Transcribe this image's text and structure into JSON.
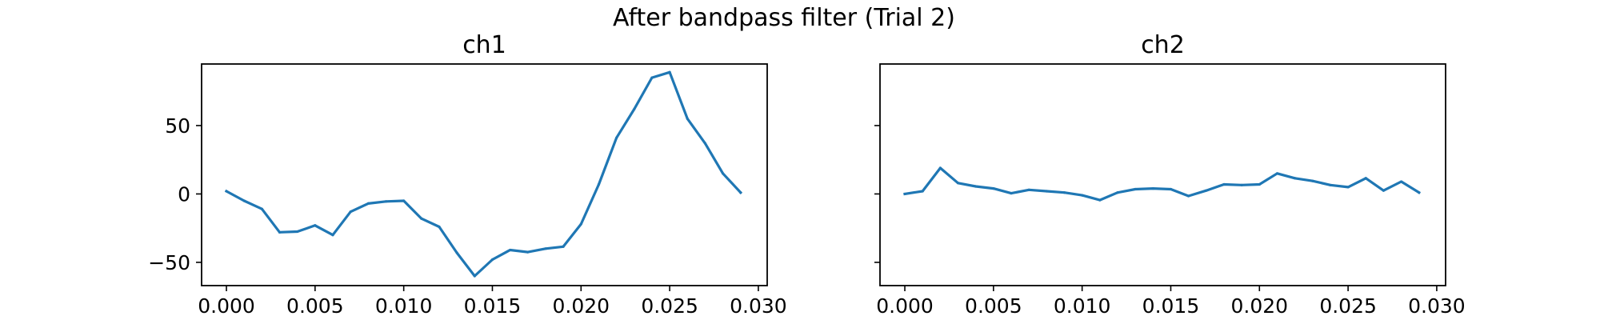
{
  "figure": {
    "suptitle": "After bandpass filter (Trial 2)"
  },
  "colors": {
    "series": "#1f77b4"
  },
  "chart_data": [
    {
      "type": "line",
      "title": "ch1",
      "xlabel": "",
      "ylabel": "",
      "xlim": [
        -0.0014,
        0.0305
      ],
      "ylim": [
        -67,
        95
      ],
      "xticks": [
        "0.000",
        "0.005",
        "0.010",
        "0.015",
        "0.020",
        "0.025",
        "0.030"
      ],
      "yticks": [
        "50",
        "0",
        "−50"
      ],
      "show_ytick_labels": true,
      "grid": false,
      "x": [
        0.0,
        0.001,
        0.002,
        0.003,
        0.004,
        0.005,
        0.006,
        0.007,
        0.008,
        0.009,
        0.01,
        0.011,
        0.012,
        0.013,
        0.014,
        0.015,
        0.016,
        0.017,
        0.018,
        0.019,
        0.02,
        0.021,
        0.022,
        0.023,
        0.024,
        0.025,
        0.026,
        0.027,
        0.028,
        0.029
      ],
      "values": [
        2,
        -5,
        -11,
        -28,
        -27.5,
        -23,
        -30,
        -13,
        -7,
        -5.5,
        -5,
        -18,
        -24,
        -43,
        -60,
        -48,
        -41,
        -42.5,
        -40,
        -38.5,
        -22,
        7,
        41,
        62,
        85,
        89,
        55,
        37,
        15,
        1
      ]
    },
    {
      "type": "line",
      "title": "ch2",
      "xlabel": "",
      "ylabel": "",
      "xlim": [
        -0.0014,
        0.0305
      ],
      "ylim": [
        -67,
        95
      ],
      "xticks": [
        "0.000",
        "0.005",
        "0.010",
        "0.015",
        "0.020",
        "0.025",
        "0.030"
      ],
      "yticks": [
        "50",
        "0",
        "−50"
      ],
      "show_ytick_labels": false,
      "grid": false,
      "x": [
        0.0,
        0.001,
        0.002,
        0.003,
        0.004,
        0.005,
        0.006,
        0.007,
        0.008,
        0.009,
        0.01,
        0.011,
        0.012,
        0.013,
        0.014,
        0.015,
        0.016,
        0.017,
        0.018,
        0.019,
        0.02,
        0.021,
        0.022,
        0.023,
        0.024,
        0.025,
        0.026,
        0.027,
        0.028,
        0.029
      ],
      "values": [
        0,
        2,
        19,
        8,
        5.5,
        4,
        0.5,
        3,
        2,
        1,
        -1,
        -4.5,
        1,
        3.5,
        4,
        3.5,
        -1.5,
        2.5,
        7,
        6.5,
        7,
        15,
        11.5,
        9.5,
        6.5,
        5,
        11.5,
        2.5,
        9,
        1
      ]
    }
  ]
}
